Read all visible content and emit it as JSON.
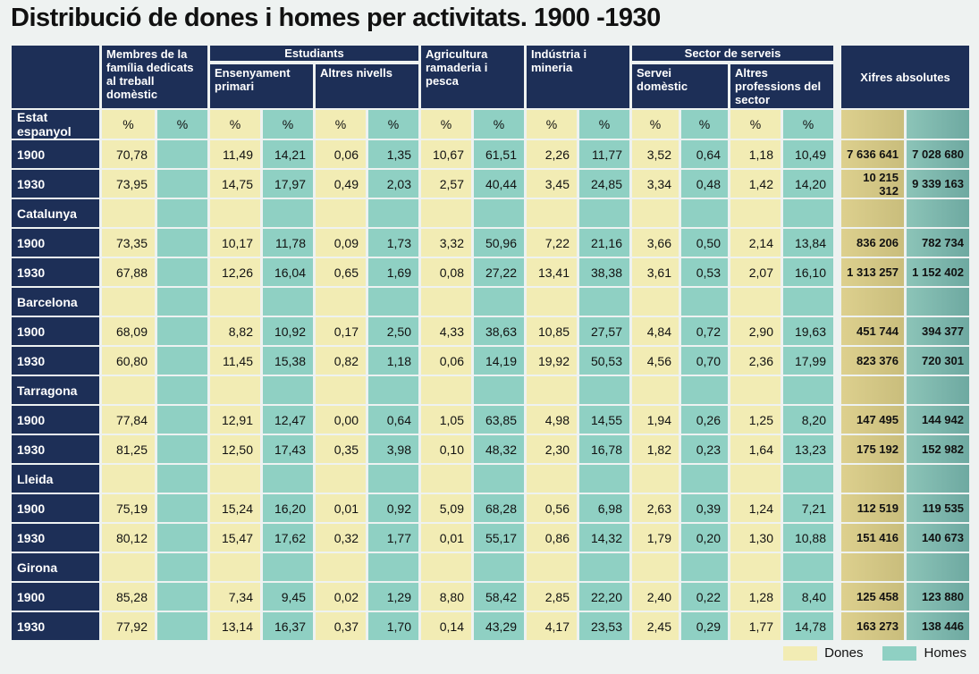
{
  "title": "Distribució de dones i homes per activitats. 1900 -1930",
  "headers": {
    "membres": "Membres de la família dedicats al treball domèstic",
    "estudiants": "Estudiants",
    "ensenyament": "Ensenyament primari",
    "altres_nivells": "Altres nivells",
    "agricultura": "Agricultura ramaderia i pesca",
    "industria": "Indústria i mineria",
    "serveis": "Sector de serveis",
    "servei_domestic": "Servei domèstic",
    "altres_professions": "Altres professions del sector",
    "xifres": "Xifres absolutes"
  },
  "percent_label": "%",
  "regions": [
    {
      "name": "Estat espanyol",
      "rows": [
        {
          "year": "1900",
          "values": [
            "70,78",
            "11,49",
            "14,21",
            "0,06",
            "1,35",
            "10,67",
            "61,51",
            "2,26",
            "11,77",
            "3,52",
            "0,64",
            "1,18",
            "10,49"
          ],
          "abs_dones": "7 636 641",
          "abs_homes": "7 028 680"
        },
        {
          "year": "1930",
          "values": [
            "73,95",
            "14,75",
            "17,97",
            "0,49",
            "2,03",
            "2,57",
            "40,44",
            "3,45",
            "24,85",
            "3,34",
            "0,48",
            "1,42",
            "14,20"
          ],
          "abs_dones": "10 215 312",
          "abs_homes": "9 339 163"
        }
      ]
    },
    {
      "name": "Catalunya",
      "rows": [
        {
          "year": "1900",
          "values": [
            "73,35",
            "10,17",
            "11,78",
            "0,09",
            "1,73",
            "3,32",
            "50,96",
            "7,22",
            "21,16",
            "3,66",
            "0,50",
            "2,14",
            "13,84"
          ],
          "abs_dones": "836 206",
          "abs_homes": "782 734"
        },
        {
          "year": "1930",
          "values": [
            "67,88",
            "12,26",
            "16,04",
            "0,65",
            "1,69",
            "0,08",
            "27,22",
            "13,41",
            "38,38",
            "3,61",
            "0,53",
            "2,07",
            "16,10"
          ],
          "abs_dones": "1 313 257",
          "abs_homes": "1 152 402"
        }
      ]
    },
    {
      "name": "Barcelona",
      "rows": [
        {
          "year": "1900",
          "values": [
            "68,09",
            "8,82",
            "10,92",
            "0,17",
            "2,50",
            "4,33",
            "38,63",
            "10,85",
            "27,57",
            "4,84",
            "0,72",
            "2,90",
            "19,63"
          ],
          "abs_dones": "451 744",
          "abs_homes": "394 377"
        },
        {
          "year": "1930",
          "values": [
            "60,80",
            "11,45",
            "15,38",
            "0,82",
            "1,18",
            "0,06",
            "14,19",
            "19,92",
            "50,53",
            "4,56",
            "0,70",
            "2,36",
            "17,99"
          ],
          "abs_dones": "823 376",
          "abs_homes": "720 301"
        }
      ]
    },
    {
      "name": "Tarragona",
      "rows": [
        {
          "year": "1900",
          "values": [
            "77,84",
            "12,91",
            "12,47",
            "0,00",
            "0,64",
            "1,05",
            "63,85",
            "4,98",
            "14,55",
            "1,94",
            "0,26",
            "1,25",
            "8,20"
          ],
          "abs_dones": "147 495",
          "abs_homes": "144 942"
        },
        {
          "year": "1930",
          "values": [
            "81,25",
            "12,50",
            "17,43",
            "0,35",
            "3,98",
            "0,10",
            "48,32",
            "2,30",
            "16,78",
            "1,82",
            "0,23",
            "1,64",
            "13,23"
          ],
          "abs_dones": "175 192",
          "abs_homes": "152 982"
        }
      ]
    },
    {
      "name": "Lleida",
      "rows": [
        {
          "year": "1900",
          "values": [
            "75,19",
            "15,24",
            "16,20",
            "0,01",
            "0,92",
            "5,09",
            "68,28",
            "0,56",
            "6,98",
            "2,63",
            "0,39",
            "1,24",
            "7,21"
          ],
          "abs_dones": "112 519",
          "abs_homes": "119 535"
        },
        {
          "year": "1930",
          "values": [
            "80,12",
            "15,47",
            "17,62",
            "0,32",
            "1,77",
            "0,01",
            "55,17",
            "0,86",
            "14,32",
            "1,79",
            "0,20",
            "1,30",
            "10,88"
          ],
          "abs_dones": "151 416",
          "abs_homes": "140 673"
        }
      ]
    },
    {
      "name": "Girona",
      "rows": [
        {
          "year": "1900",
          "values": [
            "85,28",
            "7,34",
            "9,45",
            "0,02",
            "1,29",
            "8,80",
            "58,42",
            "2,85",
            "22,20",
            "2,40",
            "0,22",
            "1,28",
            "8,40"
          ],
          "abs_dones": "125 458",
          "abs_homes": "123 880"
        },
        {
          "year": "1930",
          "values": [
            "77,92",
            "13,14",
            "16,37",
            "0,37",
            "1,70",
            "0,14",
            "43,29",
            "4,17",
            "23,53",
            "2,45",
            "0,29",
            "1,77",
            "14,78"
          ],
          "abs_dones": "163 273",
          "abs_homes": "138 446"
        }
      ]
    }
  ],
  "legend": {
    "dones": "Dones",
    "homes": "Homes"
  },
  "colors": {
    "header": "#1d2f57",
    "dones": "#f2ecb4",
    "homes": "#8fd0c3",
    "abs_dones": "#d4c787",
    "abs_homes": "#7fb8ad",
    "background": "#eef2f1"
  }
}
